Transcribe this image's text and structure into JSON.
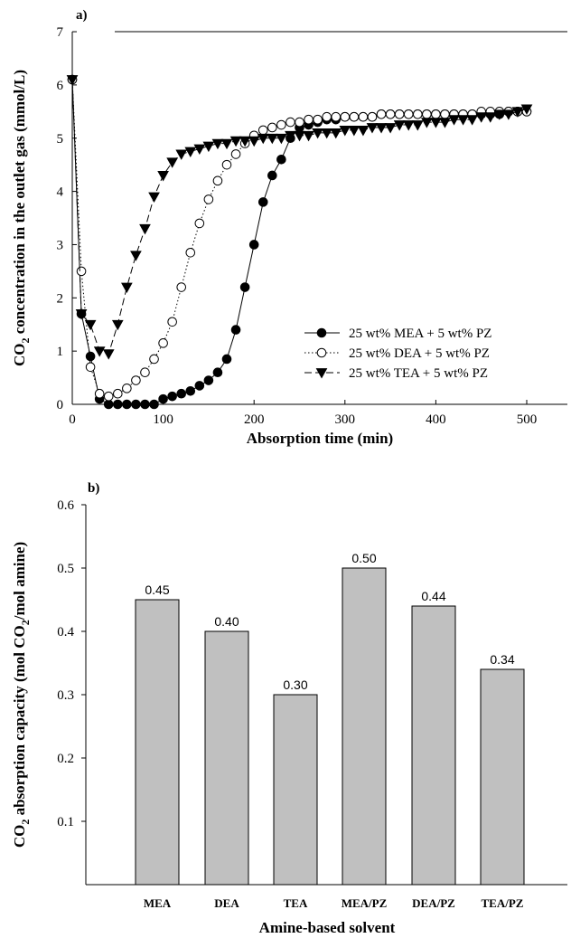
{
  "chart_data": [
    {
      "type": "line",
      "panel_label": "a)",
      "xlabel": "Absorption time (min)",
      "ylabel_pre": "CO",
      "ylabel_sub": "2",
      "ylabel_post": " concentration in the outlet gas (mmol/L)",
      "xlim": [
        0,
        550
      ],
      "ylim": [
        0,
        7
      ],
      "xticks": [
        0,
        100,
        200,
        300,
        400,
        500
      ],
      "yticks": [
        0,
        1,
        2,
        3,
        4,
        5,
        6,
        7
      ],
      "legend_position": "lower-right",
      "series": [
        {
          "name": "25 wt% MEA + 5 wt% PZ",
          "marker": "filled-circle",
          "dash": "solid",
          "x": [
            0,
            10,
            20,
            30,
            40,
            50,
            60,
            70,
            80,
            90,
            100,
            110,
            120,
            130,
            140,
            150,
            160,
            170,
            180,
            190,
            200,
            210,
            220,
            230,
            240,
            250,
            260,
            270,
            280,
            290,
            300,
            310,
            320,
            330,
            340,
            350,
            360,
            370,
            380,
            390,
            400,
            410,
            420,
            430,
            440,
            450,
            460,
            470,
            480,
            490,
            500
          ],
          "y": [
            6.1,
            1.7,
            0.9,
            0.1,
            0.0,
            0.0,
            0.0,
            0.0,
            0.0,
            0.0,
            0.1,
            0.15,
            0.2,
            0.25,
            0.35,
            0.45,
            0.6,
            0.85,
            1.4,
            2.2,
            3.0,
            3.8,
            4.3,
            4.6,
            5.0,
            5.2,
            5.25,
            5.3,
            5.35,
            5.35,
            5.4,
            5.4,
            5.4,
            5.4,
            5.45,
            5.45,
            5.45,
            5.45,
            5.45,
            5.45,
            5.45,
            5.45,
            5.45,
            5.45,
            5.45,
            5.45,
            5.45,
            5.45,
            5.5,
            5.5,
            5.5
          ]
        },
        {
          "name": "25 wt% DEA + 5 wt% PZ",
          "marker": "open-circle",
          "dash": "dotted",
          "x": [
            0,
            10,
            20,
            30,
            40,
            50,
            60,
            70,
            80,
            90,
            100,
            110,
            120,
            130,
            140,
            150,
            160,
            170,
            180,
            190,
            200,
            210,
            220,
            230,
            240,
            250,
            260,
            270,
            280,
            290,
            300,
            310,
            320,
            330,
            340,
            350,
            360,
            370,
            380,
            390,
            400,
            410,
            420,
            430,
            440,
            450,
            460,
            470,
            480,
            490,
            500
          ],
          "y": [
            6.1,
            2.5,
            0.7,
            0.2,
            0.15,
            0.2,
            0.3,
            0.45,
            0.6,
            0.85,
            1.15,
            1.55,
            2.2,
            2.85,
            3.4,
            3.85,
            4.2,
            4.5,
            4.7,
            4.9,
            5.05,
            5.15,
            5.2,
            5.25,
            5.3,
            5.3,
            5.35,
            5.35,
            5.4,
            5.4,
            5.4,
            5.4,
            5.4,
            5.4,
            5.45,
            5.45,
            5.45,
            5.45,
            5.45,
            5.45,
            5.45,
            5.45,
            5.45,
            5.45,
            5.45,
            5.5,
            5.5,
            5.5,
            5.5,
            5.5,
            5.5
          ]
        },
        {
          "name": "25 wt% TEA + 5 wt% PZ",
          "marker": "filled-triangle-down",
          "dash": "dashed",
          "x": [
            0,
            10,
            20,
            30,
            40,
            50,
            60,
            70,
            80,
            90,
            100,
            110,
            120,
            130,
            140,
            150,
            160,
            170,
            180,
            190,
            200,
            210,
            220,
            230,
            240,
            250,
            260,
            270,
            280,
            290,
            300,
            310,
            320,
            330,
            340,
            350,
            360,
            370,
            380,
            390,
            400,
            410,
            420,
            430,
            440,
            450,
            460,
            470,
            480,
            490,
            500
          ],
          "y": [
            6.1,
            1.7,
            1.5,
            1.0,
            0.95,
            1.5,
            2.2,
            2.8,
            3.3,
            3.9,
            4.3,
            4.55,
            4.7,
            4.75,
            4.8,
            4.85,
            4.9,
            4.9,
            4.95,
            4.95,
            4.95,
            5.0,
            5.0,
            5.0,
            5.05,
            5.05,
            5.05,
            5.1,
            5.1,
            5.1,
            5.15,
            5.15,
            5.15,
            5.2,
            5.2,
            5.2,
            5.25,
            5.25,
            5.25,
            5.3,
            5.3,
            5.3,
            5.35,
            5.35,
            5.35,
            5.4,
            5.4,
            5.45,
            5.45,
            5.5,
            5.55
          ]
        }
      ]
    },
    {
      "type": "bar",
      "panel_label": "b)",
      "xlabel": "Amine-based solvent",
      "ylabel_pre": "CO",
      "ylabel_sub": "2",
      "ylabel_post": " absorption capacity (mol CO",
      "ylabel_sub2": "2",
      "ylabel_post2": "/mol amine)",
      "ylim": [
        0,
        0.6
      ],
      "yticks": [
        0.1,
        0.2,
        0.3,
        0.4,
        0.5,
        0.6
      ],
      "ytick_labels": [
        "0.1",
        "0.2",
        "0.3",
        "0.4",
        "0.5",
        "0.6"
      ],
      "categories": [
        "MEA",
        "DEA",
        "TEA",
        "MEA/PZ",
        "DEA/PZ",
        "TEA/PZ"
      ],
      "values": [
        0.45,
        0.4,
        0.3,
        0.5,
        0.44,
        0.34
      ],
      "value_labels": [
        "0.45",
        "0.40",
        "0.30",
        "0.50",
        "0.44",
        "0.34"
      ],
      "bar_color": "#c0c0c0"
    }
  ]
}
